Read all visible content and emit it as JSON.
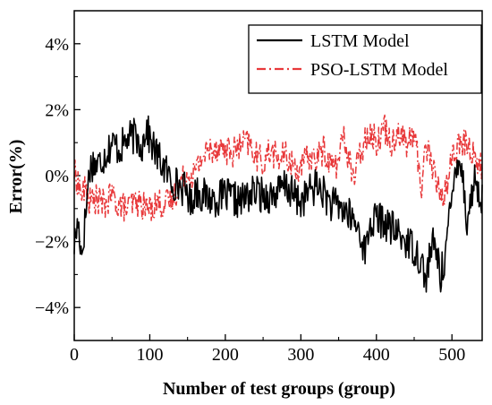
{
  "chart_data": {
    "type": "line",
    "xlabel": "Number of test groups (group)",
    "ylabel": "Error(%)",
    "xlim": [
      0,
      540
    ],
    "ylim": [
      -5,
      5
    ],
    "x_ticks": [
      0,
      100,
      200,
      300,
      400,
      500
    ],
    "x_tick_labels": [
      "0",
      "100",
      "200",
      "300",
      "400",
      "500"
    ],
    "y_ticks": [
      -4,
      -2,
      0,
      2,
      4
    ],
    "y_tick_labels": [
      "−4%",
      "−2%",
      "0%",
      "2%",
      "4%"
    ],
    "legend_position": "top-right",
    "grid": false,
    "series": [
      {
        "name": "LSTM Model",
        "color": "#000000",
        "style": "solid",
        "x": [
          0,
          5,
          10,
          15,
          20,
          25,
          30,
          40,
          50,
          60,
          70,
          80,
          90,
          95,
          100,
          110,
          120,
          130,
          140,
          150,
          155,
          160,
          170,
          180,
          190,
          200,
          210,
          220,
          230,
          240,
          250,
          260,
          270,
          280,
          290,
          300,
          310,
          320,
          330,
          340,
          350,
          360,
          370,
          380,
          385,
          390,
          400,
          410,
          420,
          430,
          440,
          450,
          460,
          465,
          470,
          475,
          480,
          485,
          490,
          495,
          500,
          505,
          510,
          515,
          520,
          525,
          530,
          535,
          540
        ],
        "values": [
          -2.1,
          -1.4,
          -2.4,
          -1.2,
          0.2,
          0.4,
          0.3,
          0.6,
          1.0,
          0.8,
          1.1,
          1.2,
          0.9,
          1.5,
          1.1,
          0.6,
          0.2,
          -0.2,
          -0.3,
          -0.5,
          -0.9,
          -0.4,
          -0.6,
          -0.7,
          -0.7,
          -0.6,
          -0.7,
          -0.8,
          -0.6,
          -0.5,
          -0.6,
          -0.6,
          -0.5,
          -0.3,
          -0.6,
          -0.8,
          -0.5,
          -0.3,
          -0.5,
          -0.9,
          -0.9,
          -1.1,
          -1.4,
          -1.8,
          -2.4,
          -1.6,
          -1.3,
          -1.4,
          -1.6,
          -1.8,
          -2.0,
          -2.2,
          -2.6,
          -3.2,
          -2.5,
          -2.1,
          -2.3,
          -3.1,
          -2.5,
          -1.6,
          -0.8,
          0.4,
          0.6,
          -0.2,
          -1.4,
          -0.8,
          0.0,
          -0.6,
          -0.6
        ]
      },
      {
        "name": "PSO-LSTM Model",
        "color": "#e8383a",
        "style": "dashdot",
        "x": [
          0,
          5,
          10,
          15,
          20,
          30,
          40,
          50,
          60,
          70,
          80,
          90,
          100,
          110,
          120,
          130,
          140,
          150,
          160,
          170,
          180,
          190,
          200,
          210,
          220,
          230,
          240,
          250,
          260,
          270,
          280,
          290,
          300,
          310,
          320,
          330,
          340,
          350,
          355,
          360,
          370,
          380,
          390,
          400,
          410,
          420,
          430,
          440,
          450,
          460,
          465,
          470,
          480,
          490,
          495,
          500,
          510,
          520,
          530,
          540
        ],
        "values": [
          0.1,
          -0.2,
          -0.6,
          -0.4,
          -0.8,
          -0.7,
          -0.9,
          -0.6,
          -0.9,
          -1.0,
          -0.8,
          -0.9,
          -1.0,
          -0.8,
          -0.9,
          -0.7,
          -0.2,
          0.0,
          0.1,
          0.6,
          0.8,
          0.9,
          0.8,
          0.7,
          0.9,
          1.0,
          0.6,
          0.4,
          0.8,
          0.5,
          0.6,
          0.3,
          0.2,
          0.6,
          0.5,
          0.8,
          0.3,
          0.4,
          1.2,
          0.9,
          -0.1,
          0.8,
          1.4,
          1.0,
          1.5,
          1.0,
          1.4,
          0.9,
          1.3,
          -0.4,
          1.0,
          0.7,
          -0.3,
          -0.6,
          -0.1,
          0.6,
          0.9,
          1.0,
          0.6,
          0.2
        ]
      }
    ]
  }
}
